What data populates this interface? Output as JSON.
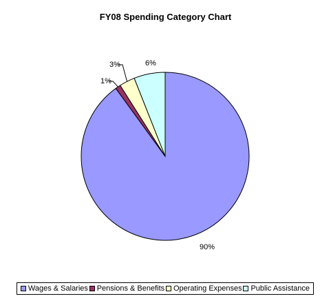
{
  "chart_data": {
    "type": "pie",
    "title": "FY08 Spending Category Chart",
    "slices": [
      {
        "name": "Wages & Salaries",
        "value": 90,
        "label": "90%",
        "color": "#9999FF"
      },
      {
        "name": "Pensions & Benefits",
        "value": 1,
        "label": "1%",
        "color": "#993366"
      },
      {
        "name": "Operating Expenses",
        "value": 3,
        "label": "3%",
        "color": "#FFFFCC"
      },
      {
        "name": "Public Assistance",
        "value": 6,
        "label": "6%",
        "color": "#CCFFFF"
      }
    ],
    "legend_position": "bottom"
  }
}
